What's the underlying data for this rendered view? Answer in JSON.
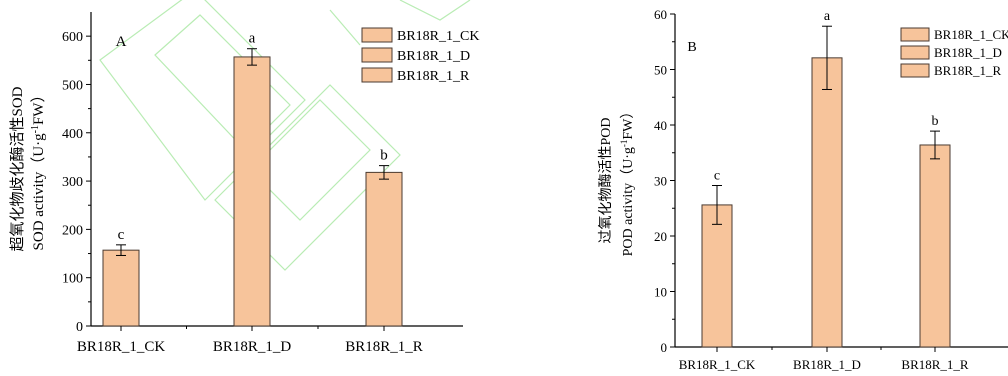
{
  "colors": {
    "bar_fill": "#f7c49b",
    "bar_stroke": "#4a3a30",
    "axis": "#000000",
    "watermark": "#b9ecb4"
  },
  "chart_data": [
    {
      "type": "bar",
      "panel_label": "A",
      "categories": [
        "BR18R_1_CK",
        "BR18R_1_D",
        "BR18R_1_R"
      ],
      "series": [
        {
          "name": "BR18R_1_CK",
          "values": [
            157,
            null,
            null
          ]
        },
        {
          "name": "BR18R_1_D",
          "values": [
            null,
            557,
            null
          ]
        },
        {
          "name": "BR18R_1_R",
          "values": [
            null,
            null,
            318
          ]
        }
      ],
      "values": [
        157,
        557,
        318
      ],
      "errors": [
        11,
        17,
        14
      ],
      "letters": [
        "c",
        "a",
        "b"
      ],
      "ylabel_cn": "超氧化物歧化酶活性SOD",
      "ylabel_en": "SOD activity（U·g",
      "ylabel_sup": "-1",
      "ylabel_end": "FW）",
      "ylim": [
        0,
        650
      ],
      "yticks": [
        0,
        100,
        200,
        300,
        400,
        500,
        600
      ],
      "grid": false,
      "legend_position": "top-right"
    },
    {
      "type": "bar",
      "panel_label": "B",
      "categories": [
        "BR18R_1_CK",
        "BR18R_1_D",
        "BR18R_1_R"
      ],
      "series": [
        {
          "name": "BR18R_1_CK",
          "values": [
            25.6,
            null,
            null
          ]
        },
        {
          "name": "BR18R_1_D",
          "values": [
            null,
            52.1,
            null
          ]
        },
        {
          "name": "BR18R_1_R",
          "values": [
            null,
            null,
            36.4
          ]
        }
      ],
      "values": [
        25.6,
        52.1,
        36.4
      ],
      "errors": [
        3.5,
        5.7,
        2.5
      ],
      "letters": [
        "c",
        "a",
        "b"
      ],
      "ylabel_cn": "过氧化物酶活性POD",
      "ylabel_en": "POD activity（U·g",
      "ylabel_sup": "-1",
      "ylabel_end": "FW）",
      "ylim": [
        0,
        60
      ],
      "yticks": [
        0,
        10,
        20,
        30,
        40,
        50,
        60
      ],
      "grid": false,
      "legend_position": "top-right"
    }
  ]
}
